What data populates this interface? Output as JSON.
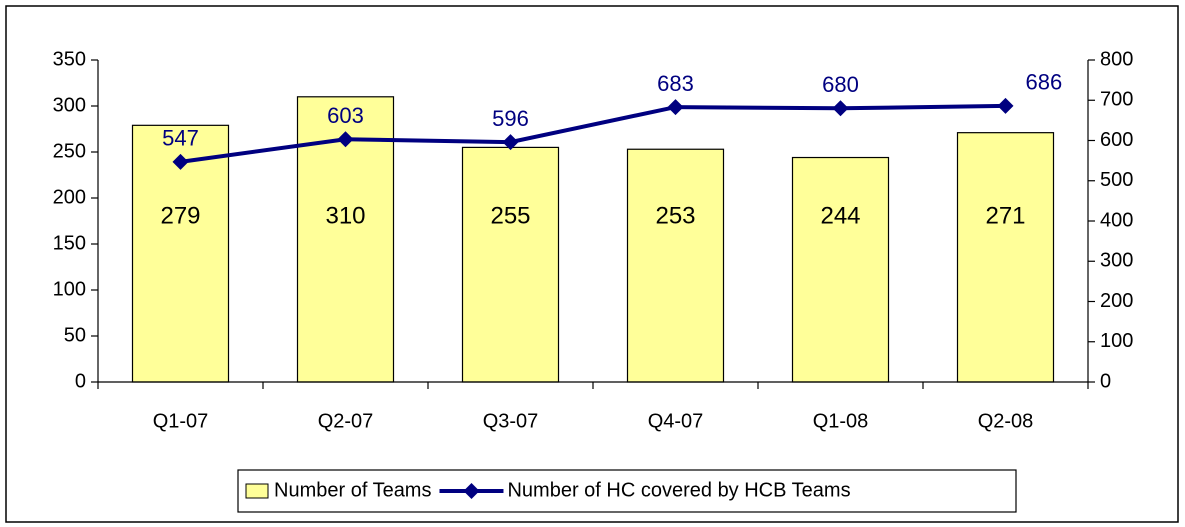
{
  "chart_data": {
    "type": "bar",
    "categories": [
      "Q1-07",
      "Q2-07",
      "Q3-07",
      "Q4-07",
      "Q1-08",
      "Q2-08"
    ],
    "series": [
      {
        "name": "Number of Teams",
        "color": "#ffff99",
        "values": [
          279,
          310,
          255,
          253,
          244,
          271
        ]
      },
      {
        "name": "Number of HC covered by HCB Teams",
        "color": "#000080",
        "type": "line",
        "axis": "y2",
        "values": [
          547,
          603,
          596,
          683,
          680,
          686
        ]
      }
    ],
    "ylim": [
      0,
      350
    ],
    "yticks": [
      0,
      50,
      100,
      150,
      200,
      250,
      300,
      350
    ],
    "y2lim": [
      0,
      800
    ],
    "y2ticks": [
      0,
      100,
      200,
      300,
      400,
      500,
      600,
      700,
      800
    ],
    "legend": "bottom"
  }
}
